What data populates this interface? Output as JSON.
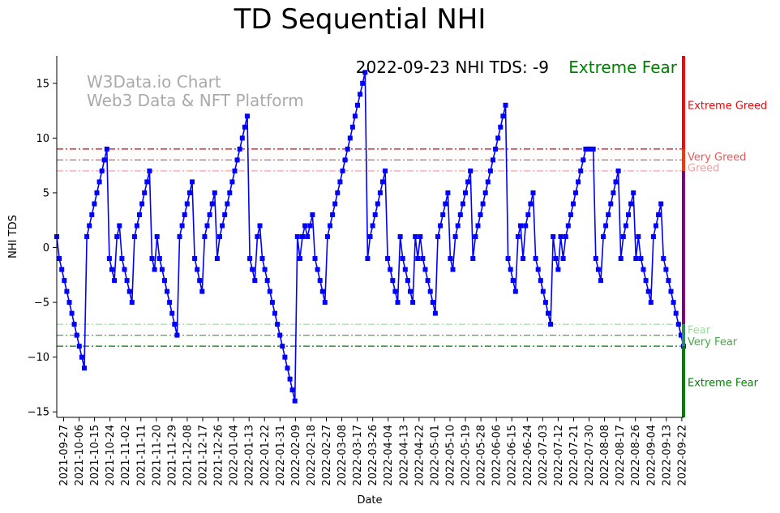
{
  "chart_data": {
    "type": "line",
    "title": "TD Sequential NHI",
    "xlabel": "Date",
    "ylabel": "NHI TDS",
    "ylim": [
      -15.5,
      17.5
    ],
    "yticks": [
      -15,
      -10,
      -5,
      0,
      5,
      10,
      15
    ],
    "x_tick_labels": [
      "2021-09-27",
      "2021-10-06",
      "2021-10-15",
      "2021-10-24",
      "2021-11-02",
      "2021-11-11",
      "2021-11-20",
      "2021-11-29",
      "2021-12-08",
      "2021-12-17",
      "2021-12-26",
      "2022-01-04",
      "2022-01-13",
      "2022-01-22",
      "2022-01-31",
      "2022-02-09",
      "2022-02-18",
      "2022-02-27",
      "2022-03-08",
      "2022-03-17",
      "2022-03-26",
      "2022-04-04",
      "2022-04-13",
      "2022-04-22",
      "2022-05-01",
      "2022-05-10",
      "2022-05-19",
      "2022-05-28",
      "2022-06-06",
      "2022-06-15",
      "2022-06-24",
      "2022-07-03",
      "2022-07-12",
      "2022-07-21",
      "2022-07-30",
      "2022-08-08",
      "2022-08-17",
      "2022-08-26",
      "2022-09-04",
      "2022-09-13",
      "2022-09-22"
    ],
    "x_start": "2021-09-23",
    "x_end": "2022-09-23",
    "series": [
      {
        "color": "#0000ff",
        "marker": "square",
        "values": [
          1,
          -1,
          -2,
          -3,
          -4,
          -5,
          -6,
          -7,
          -8,
          -9,
          -10,
          -11,
          1,
          2,
          3,
          4,
          5,
          6,
          7,
          8,
          9,
          -1,
          -2,
          -3,
          1,
          2,
          -1,
          -2,
          -3,
          -4,
          -5,
          1,
          2,
          3,
          4,
          5,
          6,
          7,
          -1,
          -2,
          1,
          -1,
          -2,
          -3,
          -4,
          -5,
          -6,
          -7,
          -8,
          1,
          2,
          3,
          4,
          5,
          6,
          -1,
          -2,
          -3,
          -4,
          1,
          2,
          3,
          4,
          5,
          -1,
          1,
          2,
          3,
          4,
          5,
          6,
          7,
          8,
          9,
          10,
          11,
          12,
          -1,
          -2,
          -3,
          1,
          2,
          -1,
          -2,
          -3,
          -4,
          -5,
          -6,
          -7,
          -8,
          -9,
          -10,
          -11,
          -12,
          -13,
          -14,
          1,
          -1,
          1,
          2,
          1,
          2,
          3,
          -1,
          -2,
          -3,
          -4,
          -5,
          1,
          2,
          3,
          4,
          5,
          6,
          7,
          8,
          9,
          10,
          11,
          12,
          13,
          14,
          15,
          16,
          -1,
          1,
          2,
          3,
          4,
          5,
          6,
          7,
          -1,
          -2,
          -3,
          -4,
          -5,
          1,
          -1,
          -2,
          -3,
          -4,
          -5,
          1,
          -1,
          1,
          -1,
          -2,
          -3,
          -4,
          -5,
          -6,
          1,
          2,
          3,
          4,
          5,
          -1,
          -2,
          1,
          2,
          3,
          4,
          5,
          6,
          7,
          -1,
          1,
          2,
          3,
          4,
          5,
          6,
          7,
          8,
          9,
          10,
          11,
          12,
          13,
          -1,
          -2,
          -3,
          -4,
          1,
          2,
          -1,
          2,
          3,
          4,
          5,
          -1,
          -2,
          -3,
          -4,
          -5,
          -6,
          -7,
          1,
          -1,
          -2,
          1,
          -1,
          1,
          2,
          3,
          4,
          5,
          6,
          7,
          8,
          9,
          9,
          9,
          9,
          -1,
          -2,
          -3,
          1,
          2,
          3,
          4,
          5,
          6,
          7,
          -1,
          1,
          2,
          3,
          4,
          5,
          -1,
          1,
          -1,
          -2,
          -3,
          -4,
          -5,
          1,
          2,
          3,
          4,
          -1,
          -2,
          -3,
          -4,
          -5,
          -6,
          -7,
          -8,
          -9
        ]
      }
    ],
    "thresholds": [
      {
        "value": 9,
        "color": "#dd0000",
        "style": "dashdot"
      },
      {
        "value": 8,
        "color": "#ee5555",
        "style": "dashdot"
      },
      {
        "value": 7,
        "color": "#f4a0a0",
        "style": "dashdot"
      },
      {
        "value": -7,
        "color": "#a0dca0",
        "style": "dashdot"
      },
      {
        "value": -8,
        "color": "#44aa44",
        "style": "dashdot"
      },
      {
        "value": -9,
        "color": "#007700",
        "style": "dashdot"
      }
    ],
    "zone_labels": [
      {
        "text": "Extreme Greed",
        "value": 13,
        "color": "#ff0000"
      },
      {
        "text": "Very Greed",
        "value": 8.3,
        "color": "#ee5555"
      },
      {
        "text": "Greed",
        "value": 7.3,
        "color": "#f4a0a0"
      },
      {
        "text": "Fear",
        "value": -7.5,
        "color": "#a0dca0"
      },
      {
        "text": "Very Fear",
        "value": -8.6,
        "color": "#44aa44"
      },
      {
        "text": "Extreme Fear",
        "value": -12.3,
        "color": "#008800"
      }
    ],
    "right_bar": [
      {
        "from": 9,
        "to": 17.5,
        "color": "#ff0000"
      },
      {
        "from": 7,
        "to": 9,
        "color": "#ff3300"
      },
      {
        "from": -7,
        "to": 7,
        "color": "#800080"
      },
      {
        "from": -9,
        "to": -7,
        "color": "#2e8b57"
      },
      {
        "from": -15.5,
        "to": -9,
        "color": "#008000"
      }
    ],
    "annotation": {
      "status": "2022-09-23 NHI TDS: -9",
      "zone": "Extreme Fear",
      "zone_color": "#008000"
    },
    "watermark": [
      "W3Data.io Chart",
      "Web3 Data & NFT Platform"
    ]
  }
}
